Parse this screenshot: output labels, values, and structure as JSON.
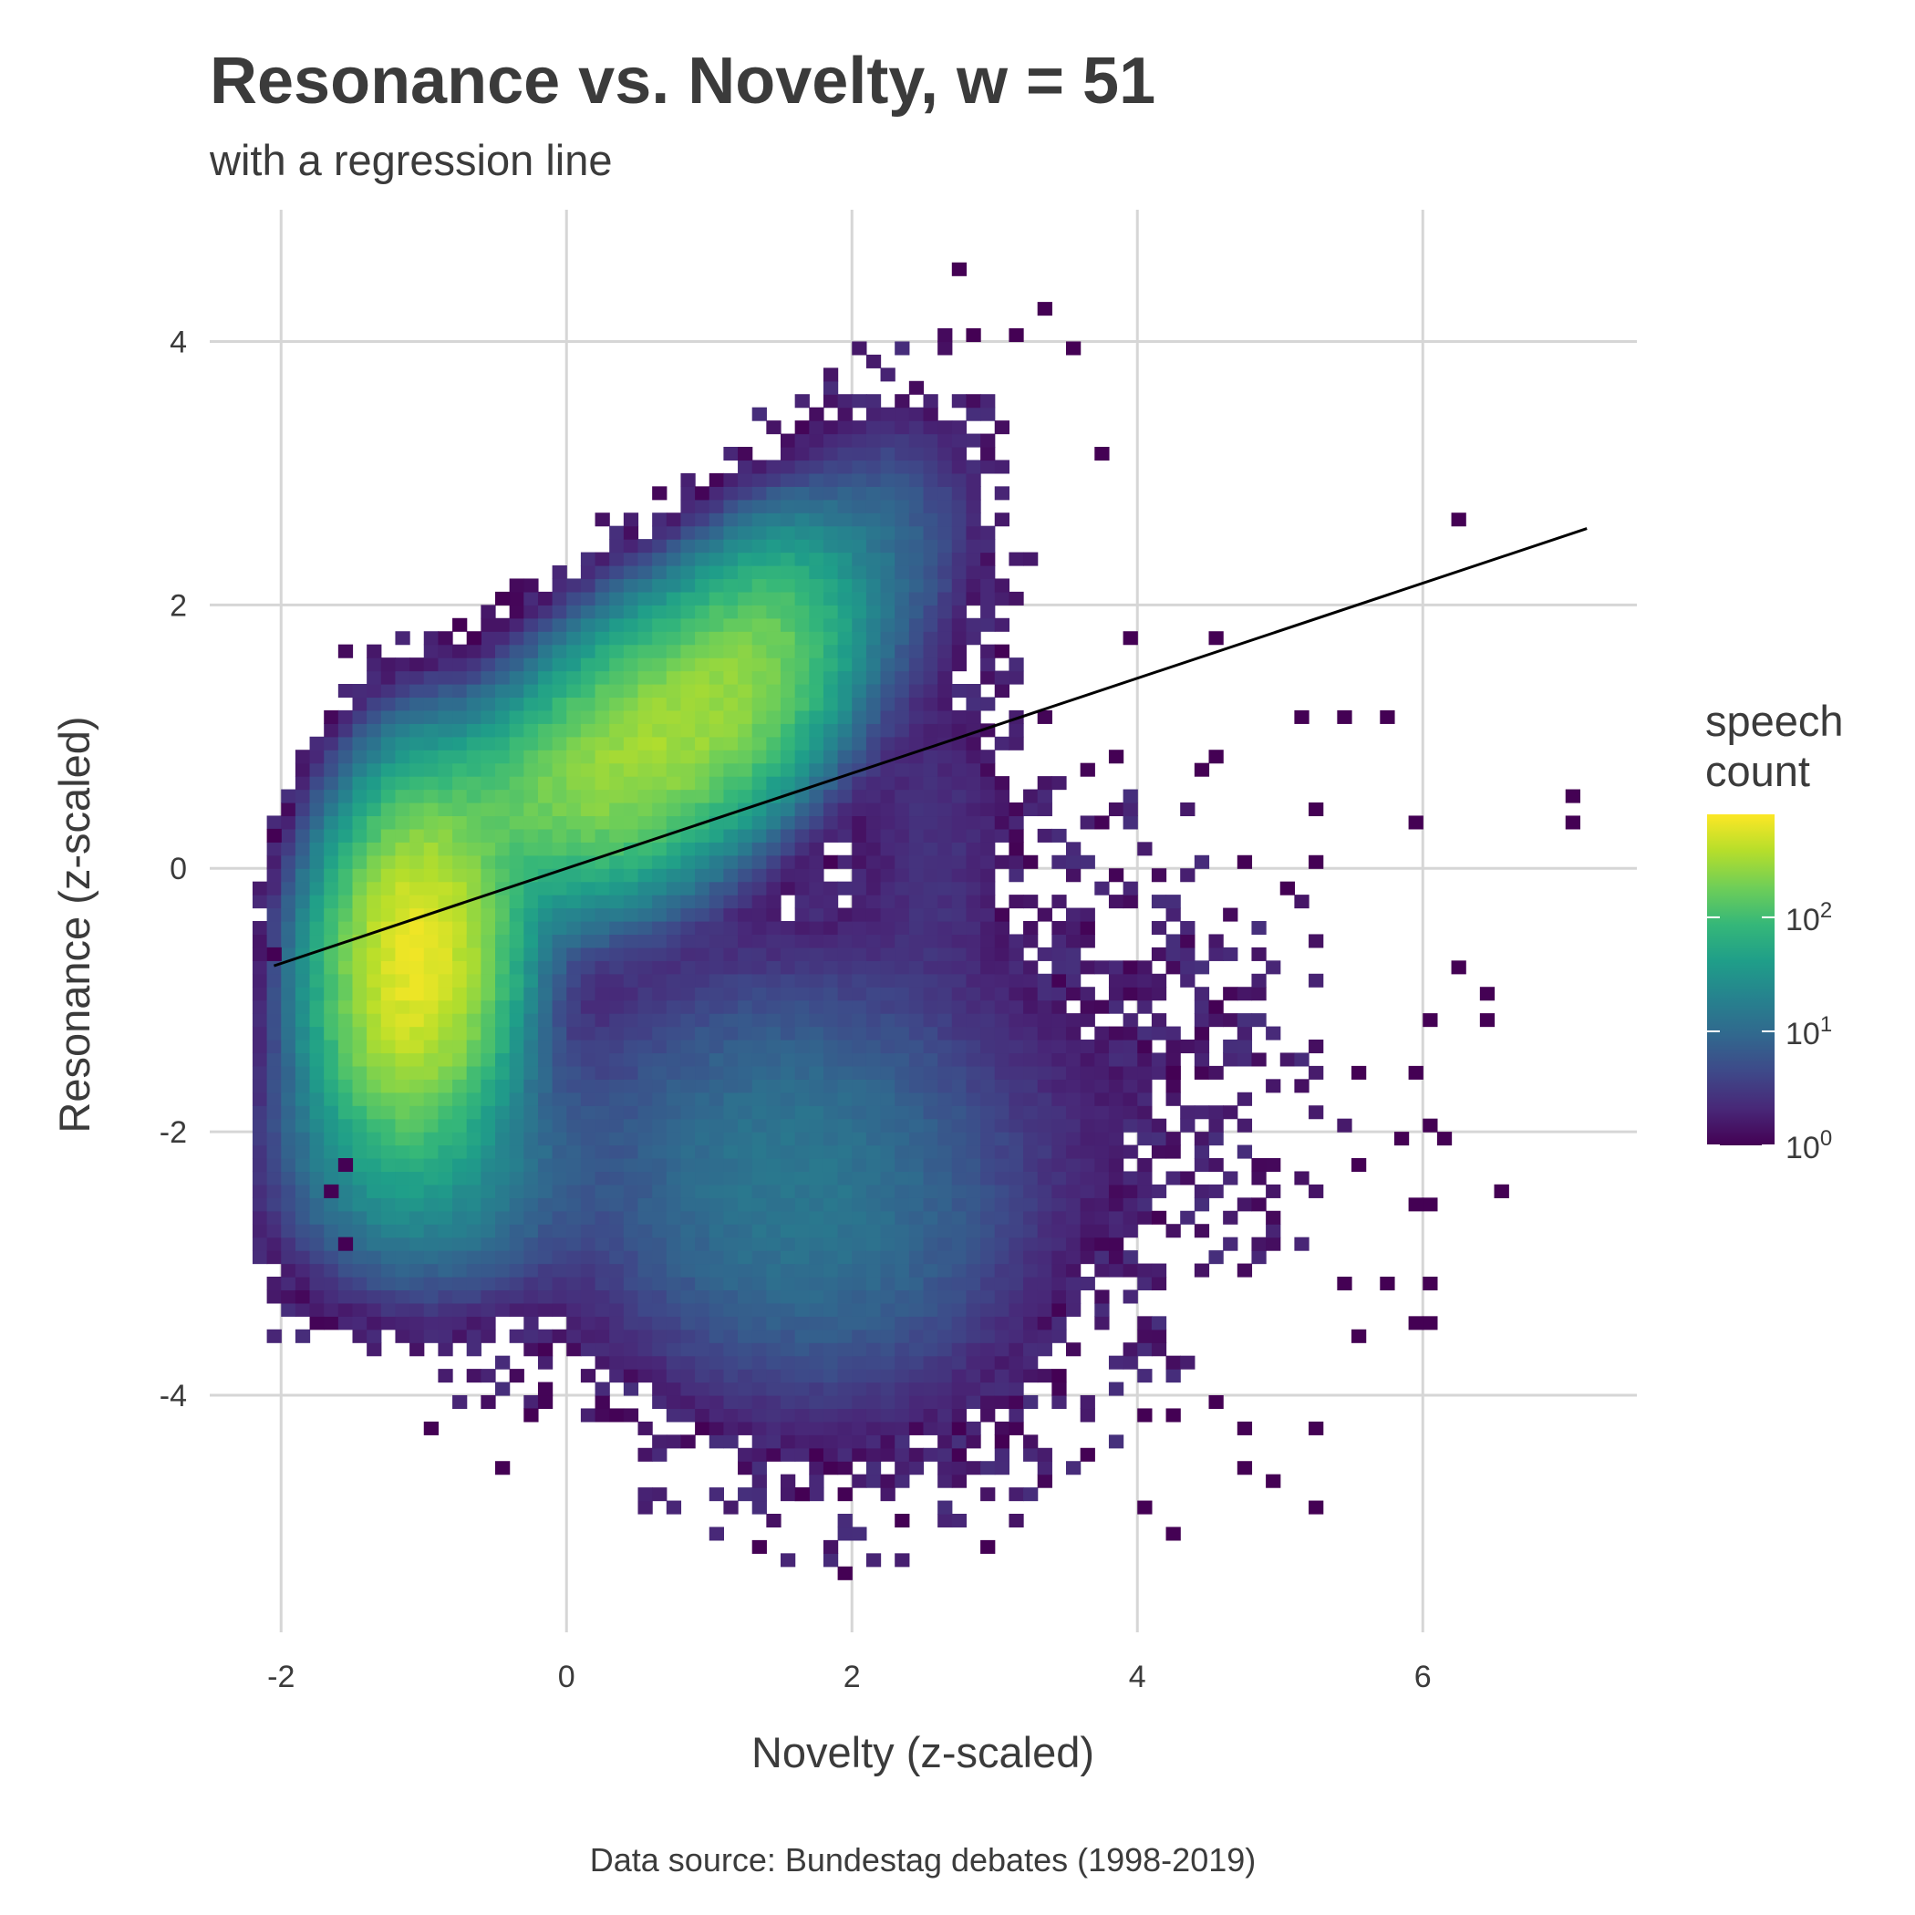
{
  "chart_data": {
    "type": "heatmap",
    "title": "Resonance vs. Novelty, w = 51",
    "subtitle": "with a regression line",
    "xlabel": "Novelty (z-scaled)",
    "ylabel": "Resonance (z-scaled)",
    "caption": "Data source: Bundestag debates (1998-2019)",
    "xlim": [
      -2.5,
      7.5
    ],
    "ylim": [
      -5.8,
      5.0
    ],
    "x_ticks": [
      -2,
      0,
      2,
      4,
      6
    ],
    "x_tick_labels": [
      "-2",
      "0",
      "2",
      "4",
      "6"
    ],
    "y_ticks": [
      -4,
      -2,
      0,
      2,
      4
    ],
    "y_tick_labels": [
      "-4",
      "-2",
      "0",
      "2",
      "4"
    ],
    "grid": true,
    "bin_width": 0.1,
    "regression_line": {
      "x": [
        -2.05,
        7.15
      ],
      "y": [
        -0.74,
        2.58
      ],
      "color": "#000000"
    },
    "density_components": [
      {
        "cx": -1.05,
        "cy": -0.7,
        "sx": 0.32,
        "sy": 0.65,
        "rho": 0.1,
        "peak": 650
      },
      {
        "cx": 0.6,
        "cy": 0.95,
        "sx": 0.55,
        "sy": 0.55,
        "rho": 0.45,
        "peak": 300
      },
      {
        "cx": 1.35,
        "cy": 1.6,
        "sx": 0.35,
        "sy": 0.5,
        "rho": 0.3,
        "peak": 120
      },
      {
        "cx": -0.3,
        "cy": 0.55,
        "sx": 0.4,
        "sy": 0.35,
        "rho": 0.2,
        "peak": 70
      },
      {
        "cx": 1.6,
        "cy": -2.4,
        "sx": 0.9,
        "sy": 0.95,
        "rho": -0.1,
        "peak": 14
      },
      {
        "cx": -1.0,
        "cy": -2.2,
        "sx": 0.55,
        "sy": 0.55,
        "rho": 0.0,
        "peak": 25
      },
      {
        "cx": 2.2,
        "cy": 2.4,
        "sx": 0.4,
        "sy": 0.6,
        "rho": 0.2,
        "peak": 8
      },
      {
        "cx": 3.8,
        "cy": -1.6,
        "sx": 0.8,
        "sy": 1.0,
        "rho": 0.0,
        "peak": 1.3
      },
      {
        "cx": 2.6,
        "cy": 0.3,
        "sx": 0.4,
        "sy": 0.8,
        "rho": 0.0,
        "peak": 2.5
      }
    ],
    "outlier_points": [
      [
        2.8,
        4.5
      ],
      [
        3.35,
        4.3
      ],
      [
        3.5,
        3.9
      ],
      [
        2.9,
        4.05
      ],
      [
        3.1,
        4.05
      ],
      [
        3.7,
        3.1
      ],
      [
        6.3,
        2.6
      ],
      [
        7.1,
        0.55
      ],
      [
        7.1,
        0.35
      ],
      [
        6.5,
        -2.5
      ],
      [
        6.6,
        -2.5
      ],
      [
        6.1,
        -2.6
      ],
      [
        5.9,
        -2.55
      ],
      [
        4.2,
        -1.6
      ],
      [
        5.8,
        1.15
      ],
      [
        5.45,
        1.15
      ],
      [
        5.15,
        1.15
      ],
      [
        3.9,
        1.7
      ],
      [
        4.6,
        1.7
      ],
      [
        5.05,
        -0.15
      ],
      [
        -0.5,
        2.0
      ],
      [
        -0.75,
        1.9
      ],
      [
        -0.7,
        1.75
      ],
      [
        -1.6,
        -2.3
      ],
      [
        -1.65,
        -2.5
      ],
      [
        -1.6,
        -2.9
      ],
      [
        -0.5,
        -4.6
      ],
      [
        -1.0,
        -4.3
      ],
      [
        3.4,
        -3.9
      ],
      [
        3.6,
        -4.5
      ],
      [
        4.1,
        -4.85
      ],
      [
        4.2,
        -5.05
      ],
      [
        5.2,
        -4.9
      ],
      [
        4.9,
        -4.7
      ],
      [
        4.8,
        -4.55
      ],
      [
        5.25,
        -4.25
      ],
      [
        4.75,
        -4.25
      ],
      [
        4.5,
        -4.1
      ],
      [
        1.95,
        -5.4
      ],
      [
        1.4,
        -5.15
      ],
      [
        2.4,
        -4.95
      ],
      [
        2.95,
        -5.15
      ],
      [
        1.65,
        -4.8
      ],
      [
        3.0,
        -4.4
      ],
      [
        4.3,
        -4.2
      ],
      [
        4.0,
        -4.2
      ],
      [
        -0.25,
        -4.15
      ],
      [
        5.75,
        -3.2
      ],
      [
        6.05,
        -3.2
      ],
      [
        5.9,
        -3.5
      ],
      [
        5.6,
        -3.55
      ],
      [
        5.45,
        -3.2
      ],
      [
        6.05,
        -3.5
      ],
      [
        -2.05,
        -0.65
      ],
      [
        -2.05,
        0.25
      ],
      [
        3.85,
        0.8
      ],
      [
        4.45,
        0.75
      ],
      [
        4.8,
        0.05
      ],
      [
        5.3,
        0.45
      ],
      [
        5.2,
        0.05
      ],
      [
        5.95,
        0.35
      ],
      [
        6.0,
        -1.15
      ],
      [
        6.3,
        -0.75
      ],
      [
        6.4,
        -0.95
      ],
      [
        6.4,
        -1.15
      ],
      [
        5.9,
        -1.55
      ],
      [
        5.6,
        -1.55
      ],
      [
        6.0,
        -1.95
      ],
      [
        5.85,
        -2.05
      ],
      [
        6.15,
        -2.05
      ],
      [
        5.55,
        -2.25
      ],
      [
        4.6,
        0.85
      ]
    ],
    "legend": {
      "title_line1": "speech",
      "title_line2": "count",
      "scale": "log10",
      "range": [
        1,
        800
      ],
      "colormap": "viridis",
      "ticks": [
        1,
        10,
        100
      ],
      "tick_bases": [
        "10",
        "10",
        "10"
      ],
      "tick_exponents": [
        "0",
        "1",
        "2"
      ]
    },
    "viridis": [
      "#440154",
      "#482878",
      "#3e4989",
      "#31688e",
      "#26828e",
      "#1f9e89",
      "#35b779",
      "#6ece58",
      "#b5de2b",
      "#fde725"
    ]
  }
}
